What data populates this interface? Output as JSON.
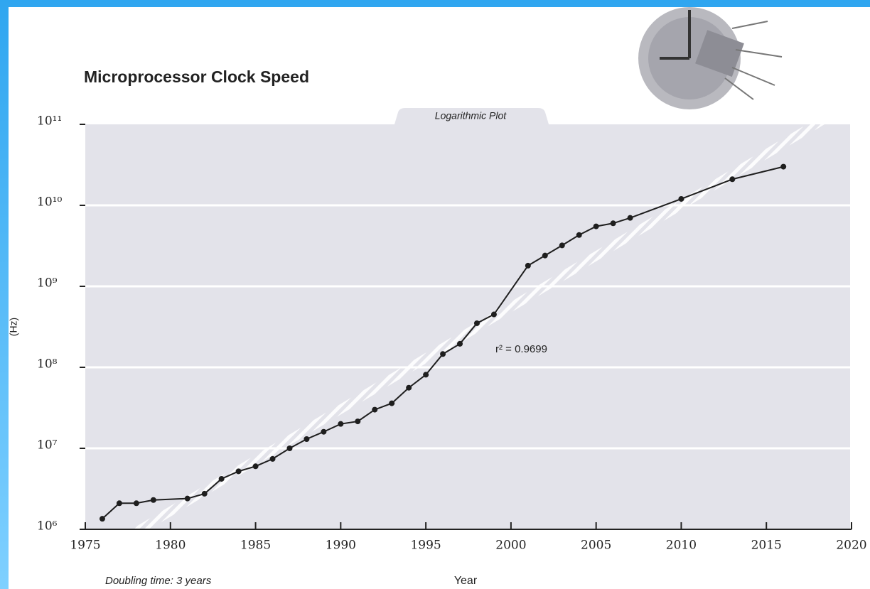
{
  "chart_data": {
    "type": "line",
    "title": "Microprocessor Clock Speed",
    "subtitle": "Logarithmic Plot",
    "xlabel": "Year",
    "ylabel": "(Hz)",
    "annotation": "r² = 0.9699",
    "note": "Doubling time: 3 years",
    "log_scale": true,
    "grid": true,
    "xlim": [
      1975,
      2020
    ],
    "xticks": [
      1975,
      1980,
      1985,
      1990,
      1995,
      2000,
      2005,
      2010,
      2015,
      2020
    ],
    "ylim": [
      1000000,
      100000000000
    ],
    "yticks": [
      {
        "value": 1000000,
        "label": "10⁶"
      },
      {
        "value": 10000000,
        "label": "10⁷"
      },
      {
        "value": 100000000,
        "label": "10⁸"
      },
      {
        "value": 1000000000,
        "label": "10⁹"
      },
      {
        "value": 10000000000,
        "label": "10¹⁰"
      },
      {
        "value": 100000000000,
        "label": "10¹¹"
      }
    ],
    "x": [
      1976,
      1977,
      1978,
      1979,
      1981,
      1982,
      1983,
      1984,
      1985,
      1986,
      1987,
      1988,
      1989,
      1990,
      1991,
      1992,
      1993,
      1994,
      1995,
      1996,
      1997,
      1998,
      1999,
      2001,
      2002,
      2003,
      2004,
      2005,
      2006,
      2007,
      2010,
      2013,
      2016
    ],
    "series": [
      {
        "color": "#1e1e1e",
        "values": [
          1350000,
          2100000,
          2100000,
          2300000,
          2400000,
          2750000,
          4200000,
          5200000,
          6000000,
          7400000,
          10000000,
          13000000,
          16000000,
          20000000,
          21500000,
          30000000,
          36000000,
          56000000,
          81000000,
          146000000,
          195000000,
          350000000,
          450000000,
          1800000000,
          2400000000,
          3200000000,
          4300000000,
          5500000000,
          6000000000,
          7000000000,
          12000000000,
          21000000000,
          30000000000
        ]
      }
    ]
  }
}
